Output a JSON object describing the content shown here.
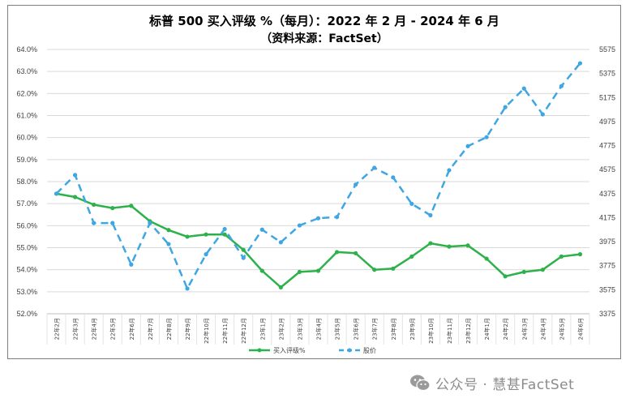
{
  "chart_data": {
    "type": "line",
    "title": "标普 500 买入评级 %（每月）：2022 年 2 月 - 2024 年 6 月",
    "subtitle": "（资料来源：FactSet）",
    "categories": [
      "22年2月",
      "22年3月",
      "22年4月",
      "22年5月",
      "22年6月",
      "22年7月",
      "22年8月",
      "22年9月",
      "22年10月",
      "22年11月",
      "22年12月",
      "23年1月",
      "23年2月",
      "23年3月",
      "23年4月",
      "23年5月",
      "23年6月",
      "23年7月",
      "23年8月",
      "23年9月",
      "23年10月",
      "23年11月",
      "23年12月",
      "24年1月",
      "24年2月",
      "24年3月",
      "24年4月",
      "24年5月",
      "24年6月"
    ],
    "series": [
      {
        "name": "买入评级%",
        "axis": "left",
        "color": "#2db14a",
        "style": "solid",
        "values": [
          57.45,
          57.3,
          56.95,
          56.8,
          56.9,
          56.2,
          55.8,
          55.5,
          55.6,
          55.6,
          54.9,
          53.95,
          53.2,
          53.9,
          53.95,
          54.8,
          54.75,
          54.0,
          54.05,
          54.6,
          55.2,
          55.05,
          55.1,
          54.5,
          53.7,
          53.9,
          54.0,
          54.6,
          54.7
        ]
      },
      {
        "name": "股价",
        "axis": "right",
        "color": "#3ea6e3",
        "style": "dashed",
        "values": [
          4375,
          4530,
          4130,
          4130,
          3785,
          4130,
          3955,
          3585,
          3870,
          4080,
          3840,
          4075,
          3970,
          4110,
          4170,
          4180,
          4450,
          4590,
          4510,
          4290,
          4195,
          4570,
          4770,
          4845,
          5095,
          5250,
          5035,
          5270,
          5460
        ]
      }
    ],
    "y_left": {
      "min": 52.0,
      "max": 64.0,
      "ticks": [
        "52.0%",
        "53.0%",
        "54.0%",
        "55.0%",
        "56.0%",
        "57.0%",
        "58.0%",
        "59.0%",
        "60.0%",
        "61.0%",
        "62.0%",
        "63.0%",
        "64.0%"
      ]
    },
    "y_right": {
      "min": 3375,
      "max": 5575,
      "ticks": [
        "3375",
        "3575",
        "3775",
        "3975",
        "4175",
        "4375",
        "4575",
        "4775",
        "4975",
        "5175",
        "5375",
        "5575"
      ]
    },
    "grid": "horizontal",
    "legend": "bottom-center"
  },
  "watermark": {
    "text": "公众号 · 慧甚FactSet",
    "icon": "wechat-icon",
    "color": "#8c8c8c"
  }
}
